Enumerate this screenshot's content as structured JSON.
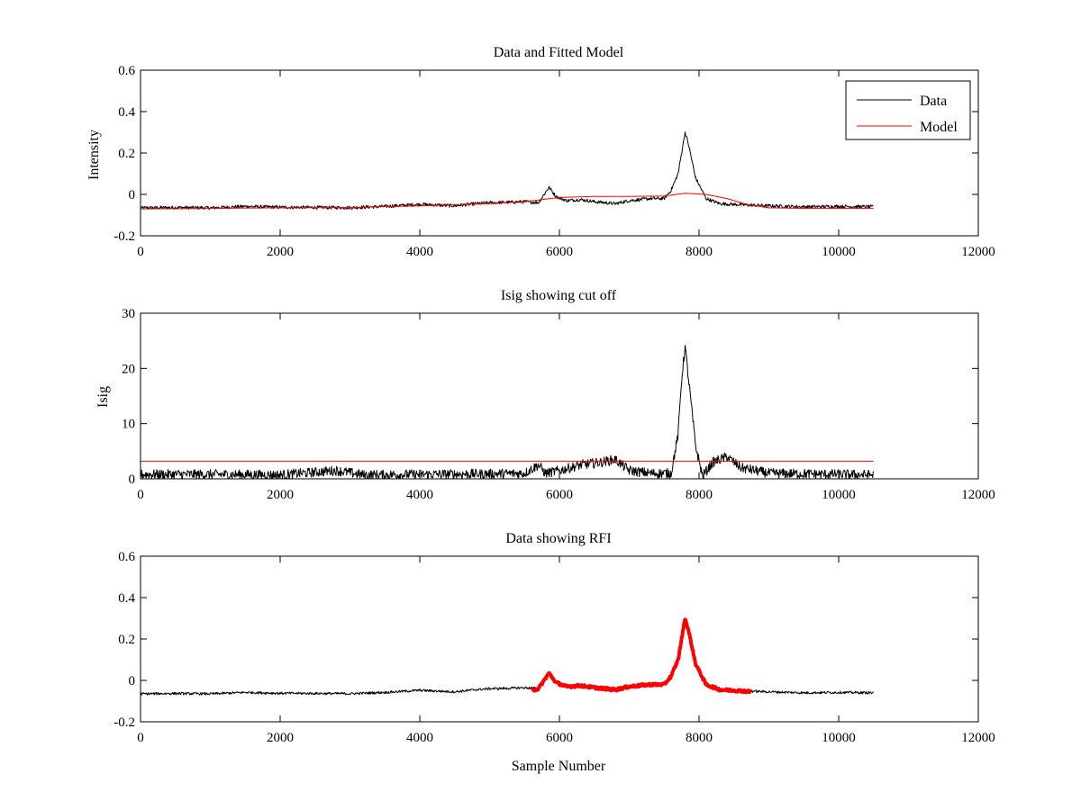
{
  "figure": {
    "background": "#ffffff",
    "data_color": "#000000",
    "model_color": "#ff0000",
    "rfi_color": "#ff0000"
  },
  "chart_data": [
    {
      "id": "top",
      "type": "line",
      "title": "Data and Fitted Model",
      "xlabel": "",
      "ylabel": "Intensity",
      "xlim": [
        0,
        12000
      ],
      "ylim": [
        -0.2,
        0.6
      ],
      "xticks": [
        0,
        2000,
        4000,
        6000,
        8000,
        10000,
        12000
      ],
      "xtick_labels": [
        "0",
        "2000",
        "4000",
        "6000",
        "8000",
        "10000",
        "12000"
      ],
      "yticks": [
        -0.2,
        0,
        0.2,
        0.4,
        0.6
      ],
      "ytick_labels": [
        "-0.2",
        "0",
        "0.2",
        "0.4",
        "0.6"
      ],
      "legend": {
        "location": "top-right",
        "entries": [
          "Data",
          "Model"
        ]
      },
      "series": [
        {
          "name": "Data",
          "color": "#000000",
          "noise": 0.008,
          "x": [
            0,
            500,
            1000,
            1500,
            2000,
            2500,
            3000,
            3500,
            4000,
            4500,
            4800,
            5000,
            5300,
            5500,
            5700,
            5850,
            5950,
            6100,
            6300,
            6500,
            6800,
            7000,
            7300,
            7500,
            7600,
            7700,
            7800,
            7850,
            7950,
            8100,
            8300,
            8600,
            9000,
            9500,
            10000,
            10500
          ],
          "y": [
            -0.065,
            -0.063,
            -0.065,
            -0.058,
            -0.062,
            -0.063,
            -0.064,
            -0.058,
            -0.048,
            -0.055,
            -0.045,
            -0.04,
            -0.038,
            -0.035,
            -0.04,
            0.035,
            -0.01,
            -0.03,
            -0.025,
            -0.035,
            -0.045,
            -0.03,
            -0.02,
            -0.02,
            0.02,
            0.1,
            0.3,
            0.24,
            0.08,
            -0.02,
            -0.045,
            -0.05,
            -0.055,
            -0.06,
            -0.058,
            -0.06
          ]
        },
        {
          "name": "Model",
          "color": "#ff0000",
          "noise": 0,
          "x": [
            0,
            1000,
            2000,
            3000,
            4000,
            4500,
            5000,
            5500,
            6000,
            6500,
            7000,
            7500,
            7800,
            8100,
            8400,
            8700,
            9000,
            9500,
            10000,
            10500
          ],
          "y": [
            -0.07,
            -0.068,
            -0.065,
            -0.063,
            -0.055,
            -0.05,
            -0.045,
            -0.035,
            -0.015,
            -0.01,
            -0.01,
            -0.008,
            0.005,
            0.0,
            -0.02,
            -0.05,
            -0.065,
            -0.068,
            -0.068,
            -0.068
          ]
        }
      ]
    },
    {
      "id": "middle",
      "type": "line",
      "title": "Isig showing cut off",
      "xlabel": "",
      "ylabel": "Isig",
      "xlim": [
        0,
        12000
      ],
      "ylim": [
        0,
        30
      ],
      "xticks": [
        0,
        2000,
        4000,
        6000,
        8000,
        10000,
        12000
      ],
      "xtick_labels": [
        "0",
        "2000",
        "4000",
        "6000",
        "8000",
        "10000",
        "12000"
      ],
      "yticks": [
        0,
        10,
        20,
        30
      ],
      "ytick_labels": [
        "0",
        "10",
        "20",
        "30"
      ],
      "series": [
        {
          "name": "Isig",
          "color": "#000000",
          "noise": 0.9,
          "x": [
            0,
            1000,
            2000,
            2800,
            3200,
            4000,
            5000,
            5500,
            5700,
            5800,
            6000,
            6300,
            6600,
            6800,
            7000,
            7300,
            7600,
            7700,
            7750,
            7800,
            7850,
            7950,
            8050,
            8200,
            8400,
            8600,
            9000,
            10000,
            10500
          ],
          "y": [
            0.8,
            0.8,
            0.7,
            1.5,
            0.7,
            0.8,
            0.9,
            1.0,
            2.5,
            1.0,
            1.5,
            2.5,
            3.0,
            3.5,
            1.5,
            1.0,
            1.0,
            8.0,
            18.0,
            24.0,
            18.0,
            6.0,
            0.5,
            3.0,
            4.0,
            2.0,
            1.0,
            0.8,
            0.7
          ]
        },
        {
          "name": "Cut off",
          "color": "#ff0000",
          "noise": 0,
          "x": [
            0,
            10500
          ],
          "y": [
            3.2,
            3.2
          ]
        }
      ]
    },
    {
      "id": "bottom",
      "type": "line",
      "title": "Data showing RFI",
      "xlabel": "Sample Number",
      "ylabel": "",
      "xlim": [
        0,
        12000
      ],
      "ylim": [
        -0.2,
        0.6
      ],
      "xticks": [
        0,
        2000,
        4000,
        6000,
        8000,
        10000,
        12000
      ],
      "xtick_labels": [
        "0",
        "2000",
        "4000",
        "6000",
        "8000",
        "10000",
        "12000"
      ],
      "yticks": [
        -0.2,
        0,
        0.2,
        0.4,
        0.6
      ],
      "ytick_labels": [
        "-0.2",
        "0",
        "0.2",
        "0.4",
        "0.6"
      ],
      "series": [
        {
          "name": "Data",
          "color": "#000000",
          "noise": 0.006,
          "x": [
            0,
            500,
            1000,
            1500,
            2000,
            2500,
            3000,
            3500,
            4000,
            4500,
            4800,
            5000,
            5300,
            5500,
            5700,
            5850,
            5950,
            6100,
            6300,
            6500,
            6800,
            7000,
            7300,
            7500,
            7600,
            7700,
            7800,
            7850,
            7950,
            8100,
            8300,
            8600,
            9000,
            9500,
            10000,
            10500
          ],
          "y": [
            -0.065,
            -0.063,
            -0.065,
            -0.058,
            -0.062,
            -0.063,
            -0.064,
            -0.058,
            -0.048,
            -0.055,
            -0.045,
            -0.04,
            -0.038,
            -0.035,
            -0.04,
            0.035,
            -0.01,
            -0.03,
            -0.025,
            -0.035,
            -0.045,
            -0.03,
            -0.02,
            -0.02,
            0.02,
            0.1,
            0.3,
            0.24,
            0.08,
            -0.02,
            -0.045,
            -0.05,
            -0.055,
            -0.06,
            -0.058,
            -0.06
          ]
        },
        {
          "name": "RFI",
          "color": "#ff0000",
          "noise": 0.006,
          "x": [
            5600,
            5700,
            5850,
            5950,
            6100,
            6300,
            6500,
            6800,
            7000,
            7300,
            7500,
            7600,
            7700,
            7800,
            7850,
            7950,
            8100,
            8300,
            8600,
            8750
          ],
          "y": [
            -0.05,
            -0.04,
            0.035,
            -0.01,
            -0.03,
            -0.025,
            -0.035,
            -0.045,
            -0.03,
            -0.02,
            -0.02,
            0.02,
            0.1,
            0.3,
            0.24,
            0.08,
            -0.02,
            -0.045,
            -0.05,
            -0.055
          ]
        }
      ]
    }
  ]
}
